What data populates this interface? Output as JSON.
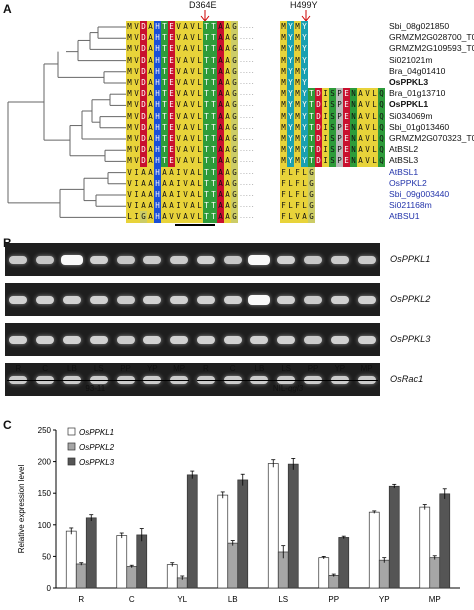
{
  "panels": {
    "a": "A",
    "b": "B",
    "c": "C"
  },
  "alignment": {
    "mutation_left": "D364E",
    "mutation_right": "H499Y",
    "sequences": [
      {
        "name": "Sbi_08g021850",
        "bold": false,
        "blue": false,
        "left": "MVDAHTEVAVLTTAAG",
        "right": "MYMY"
      },
      {
        "name": "GRMZM2G028700_T01",
        "bold": false,
        "blue": false,
        "left": "MVDAHTEVAVLTTAAG",
        "right": "MYMY"
      },
      {
        "name": "GRMZM2G109593_T01",
        "bold": false,
        "blue": false,
        "left": "MVDAHTEVAVLTTAAG",
        "right": "MYMY"
      },
      {
        "name": "Si021021m",
        "bold": false,
        "blue": false,
        "left": "MVDAHTEVAVLTTAAG",
        "right": "MYMY"
      },
      {
        "name": "Bra_04g01410",
        "bold": false,
        "blue": false,
        "left": "MVDAHTEVAVLTTAAG",
        "right": "MYMY"
      },
      {
        "name": "OsPPKL3",
        "bold": true,
        "blue": false,
        "left": "MVDAHTEVAVLTTAAG",
        "right": "MYMY"
      },
      {
        "name": "Bra_01g13710",
        "bold": false,
        "blue": false,
        "left": "MVDAHTEVAVLTTAAG",
        "right": "MYMYTDISPENAVLQ"
      },
      {
        "name": "OsPPKL1",
        "bold": true,
        "blue": false,
        "left": "MVDAHTEVAVLTTAAG",
        "right": "MYMYTDISPENAVLQ"
      },
      {
        "name": "Si034069m",
        "bold": false,
        "blue": false,
        "left": "MVDAHTEVAVLTTAAG",
        "right": "MYMYTDISPENAVLQ"
      },
      {
        "name": "Sbi_01g013460",
        "bold": false,
        "blue": false,
        "left": "MVDAHTEVAVLTTAAG",
        "right": "MYMYTDISPENAVLQ"
      },
      {
        "name": "GRMZM2G070323_T01",
        "bold": false,
        "blue": false,
        "left": "MVDAHTEVAVLTTAAG",
        "right": "MYMYTDISPENAVLQ"
      },
      {
        "name": "AtBSL2",
        "bold": false,
        "blue": false,
        "left": "MVDAHTEVAVLTTAAG",
        "right": "MYMYTDISPENAVLQ"
      },
      {
        "name": "AtBSL3",
        "bold": false,
        "blue": false,
        "left": "MVDAHTEVAVLTTAAG",
        "right": "MYMYTDISPENAVLQ"
      },
      {
        "name": "AtBSL1",
        "bold": false,
        "blue": true,
        "left": "VIAAHAAIVALTTAAG",
        "right": "FLFLG"
      },
      {
        "name": "OsPPKL2",
        "bold": false,
        "blue": true,
        "left": "VIAAHAAIVALTTAAG",
        "right": "FLFLG"
      },
      {
        "name": "Sbi_09g003440",
        "bold": false,
        "blue": true,
        "left": "VIAAHAAIVALTTAAG",
        "right": "FLFLG"
      },
      {
        "name": "Si021168m",
        "bold": false,
        "blue": true,
        "left": "VIAAHAAIVALTTAAG",
        "right": "FLFLG"
      },
      {
        "name": "AtBSU1",
        "bold": false,
        "blue": true,
        "left": "LIGAHAVVAVLTTAAG",
        "right": "FLVAG"
      }
    ]
  },
  "gels": {
    "rows": [
      "OsPPKL1",
      "OsPPKL2",
      "OsPPKL3",
      "OsRac1"
    ],
    "lanes": [
      "R",
      "C",
      "LB",
      "LS",
      "PP",
      "YP",
      "MP",
      "R",
      "C",
      "LB",
      "LS",
      "PP",
      "YP",
      "MP"
    ],
    "group_left": "93-11",
    "group_right": "NIL-qgl3",
    "group_right_prefix": "NIL-",
    "group_right_italic": "qgl3"
  },
  "chart_data": {
    "type": "bar",
    "ylabel": "Relative expression level",
    "ylim": [
      0,
      250
    ],
    "yticks": [
      0,
      50,
      100,
      150,
      200,
      250
    ],
    "categories": [
      "R",
      "C",
      "YL",
      "LB",
      "LS",
      "PP",
      "YP",
      "MP"
    ],
    "series": [
      {
        "name": "OsPPKL1",
        "color": "#ffffff",
        "values": [
          90,
          83,
          37,
          147,
          197,
          48,
          120,
          128
        ],
        "errors": [
          5,
          4,
          3,
          5,
          6,
          2,
          2,
          4
        ]
      },
      {
        "name": "OsPPKL2",
        "color": "#a6a6a6",
        "values": [
          38,
          34,
          16,
          71,
          57,
          20,
          44,
          48
        ],
        "errors": [
          2,
          2,
          3,
          4,
          10,
          2,
          4,
          3
        ]
      },
      {
        "name": "OsPPKL3",
        "color": "#555555",
        "values": [
          111,
          84,
          179,
          171,
          196,
          80,
          161,
          149
        ],
        "errors": [
          5,
          10,
          6,
          9,
          9,
          2,
          3,
          8
        ]
      }
    ],
    "legend": "top-left"
  }
}
